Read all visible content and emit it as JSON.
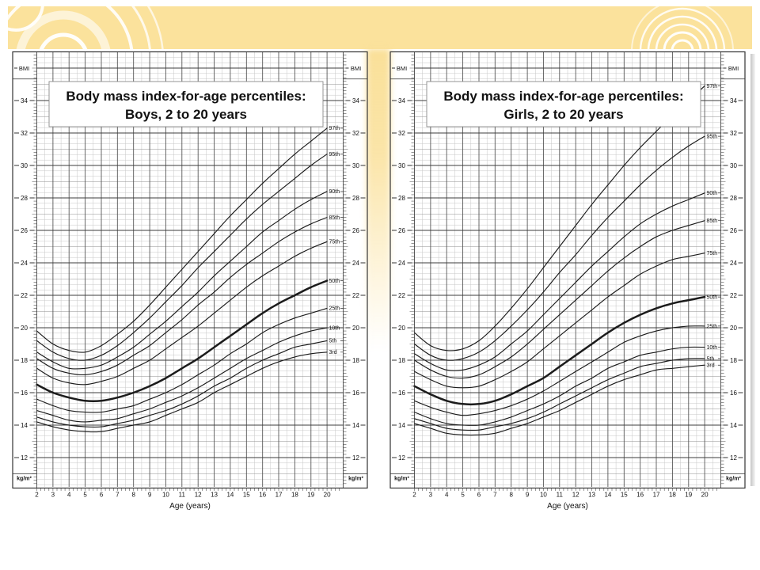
{
  "slide": {
    "background_color": "#ffffff",
    "band_color": "#fbe29c",
    "ornament_color": "#ffffff",
    "curve_color": "#1b1b1b"
  },
  "chart_data": [
    {
      "type": "line",
      "name": "boys-bmi-percentiles",
      "title": "Body mass index-for-age percentiles:",
      "subtitle": "Boys, 2 to 20 years",
      "xlabel": "Age (years)",
      "ylabel_top": "BMI",
      "ylabel_bottom": "kg/m²",
      "grid": true,
      "legend_position": "right-end-of-curve-labels",
      "x": [
        2,
        3,
        4,
        5,
        6,
        7,
        8,
        9,
        10,
        11,
        12,
        13,
        14,
        15,
        16,
        17,
        18,
        19,
        20
      ],
      "xlim": [
        2,
        21
      ],
      "ylim": [
        10.2,
        37
      ],
      "xticks": [
        2,
        3,
        4,
        5,
        6,
        7,
        8,
        9,
        10,
        11,
        12,
        13,
        14,
        15,
        16,
        17,
        18,
        19,
        20
      ],
      "yticks": [
        12,
        14,
        16,
        18,
        20,
        22,
        24,
        26,
        28,
        30,
        32,
        34
      ],
      "series": [
        {
          "name": "97th",
          "bold": false,
          "values": [
            19.8,
            19.0,
            18.6,
            18.5,
            18.9,
            19.6,
            20.4,
            21.4,
            22.5,
            23.6,
            24.7,
            25.8,
            26.9,
            27.9,
            28.9,
            29.8,
            30.7,
            31.5,
            32.3
          ]
        },
        {
          "name": "95th",
          "bold": false,
          "values": [
            19.2,
            18.5,
            18.1,
            18.0,
            18.3,
            18.9,
            19.7,
            20.6,
            21.6,
            22.6,
            23.7,
            24.7,
            25.7,
            26.7,
            27.6,
            28.4,
            29.2,
            30.0,
            30.7
          ]
        },
        {
          "name": "90th",
          "bold": false,
          "values": [
            18.5,
            17.9,
            17.5,
            17.5,
            17.7,
            18.2,
            18.8,
            19.6,
            20.4,
            21.3,
            22.2,
            23.2,
            24.1,
            25.0,
            25.9,
            26.6,
            27.3,
            27.9,
            28.4
          ]
        },
        {
          "name": "85th",
          "bold": false,
          "values": [
            18.1,
            17.5,
            17.2,
            17.1,
            17.3,
            17.7,
            18.3,
            18.9,
            19.7,
            20.5,
            21.4,
            22.2,
            23.1,
            23.9,
            24.6,
            25.3,
            25.9,
            26.4,
            26.8
          ]
        },
        {
          "name": "75th",
          "bold": false,
          "values": [
            17.5,
            16.9,
            16.6,
            16.5,
            16.7,
            17.0,
            17.5,
            18.0,
            18.7,
            19.4,
            20.1,
            20.9,
            21.7,
            22.5,
            23.2,
            23.8,
            24.4,
            24.9,
            25.3
          ]
        },
        {
          "name": "50th",
          "bold": true,
          "values": [
            16.5,
            16.0,
            15.7,
            15.5,
            15.5,
            15.7,
            16.0,
            16.4,
            16.9,
            17.5,
            18.1,
            18.8,
            19.5,
            20.2,
            20.9,
            21.5,
            22.0,
            22.5,
            22.9
          ]
        },
        {
          "name": "25th",
          "bold": false,
          "values": [
            15.6,
            15.2,
            14.9,
            14.8,
            14.8,
            15.0,
            15.2,
            15.6,
            16.0,
            16.5,
            17.1,
            17.7,
            18.4,
            19.0,
            19.7,
            20.2,
            20.6,
            20.9,
            21.2
          ]
        },
        {
          "name": "10th",
          "bold": false,
          "values": [
            14.9,
            14.6,
            14.3,
            14.2,
            14.3,
            14.4,
            14.7,
            15.0,
            15.4,
            15.8,
            16.3,
            16.9,
            17.5,
            18.1,
            18.6,
            19.1,
            19.5,
            19.8,
            20.0
          ]
        },
        {
          "name": "5th",
          "bold": false,
          "values": [
            14.5,
            14.2,
            14.0,
            13.9,
            13.9,
            14.1,
            14.3,
            14.6,
            14.9,
            15.3,
            15.8,
            16.4,
            16.9,
            17.5,
            18.0,
            18.4,
            18.8,
            19.0,
            19.2
          ]
        },
        {
          "name": "3rd",
          "bold": false,
          "values": [
            14.2,
            13.9,
            13.7,
            13.6,
            13.6,
            13.8,
            14.0,
            14.2,
            14.6,
            15.0,
            15.4,
            16.0,
            16.5,
            17.0,
            17.5,
            17.9,
            18.2,
            18.4,
            18.5
          ]
        }
      ]
    },
    {
      "type": "line",
      "name": "girls-bmi-percentiles",
      "title": "Body mass index-for-age percentiles:",
      "subtitle": "Girls, 2 to 20 years",
      "xlabel": "Age (years)",
      "ylabel_top": "BMI",
      "ylabel_bottom": "kg/m²",
      "grid": true,
      "legend_position": "right-end-of-curve-labels",
      "x": [
        2,
        3,
        4,
        5,
        6,
        7,
        8,
        9,
        10,
        11,
        12,
        13,
        14,
        15,
        16,
        17,
        18,
        19,
        20
      ],
      "xlim": [
        2,
        21
      ],
      "ylim": [
        10.2,
        37
      ],
      "xticks": [
        2,
        3,
        4,
        5,
        6,
        7,
        8,
        9,
        10,
        11,
        12,
        13,
        14,
        15,
        16,
        17,
        18,
        19,
        20
      ],
      "yticks": [
        12,
        14,
        16,
        18,
        20,
        22,
        24,
        26,
        28,
        30,
        32,
        34
      ],
      "series": [
        {
          "name": "97th",
          "bold": false,
          "values": [
            19.7,
            18.9,
            18.6,
            18.7,
            19.2,
            20.1,
            21.2,
            22.4,
            23.7,
            25.0,
            26.3,
            27.6,
            28.8,
            30.0,
            31.1,
            32.1,
            33.1,
            34.0,
            34.9
          ]
        },
        {
          "name": "95th",
          "bold": false,
          "values": [
            19.0,
            18.3,
            18.0,
            18.1,
            18.5,
            19.2,
            20.1,
            21.1,
            22.2,
            23.4,
            24.5,
            25.7,
            26.8,
            27.8,
            28.8,
            29.7,
            30.5,
            31.2,
            31.8
          ]
        },
        {
          "name": "90th",
          "bold": false,
          "values": [
            18.4,
            17.8,
            17.4,
            17.4,
            17.7,
            18.2,
            19.0,
            19.8,
            20.8,
            21.8,
            22.8,
            23.8,
            24.7,
            25.6,
            26.4,
            27.0,
            27.5,
            27.9,
            28.3
          ]
        },
        {
          "name": "85th",
          "bold": false,
          "values": [
            18.0,
            17.4,
            17.0,
            16.9,
            17.1,
            17.6,
            18.2,
            19.0,
            19.9,
            20.8,
            21.7,
            22.6,
            23.5,
            24.3,
            25.0,
            25.6,
            26.0,
            26.3,
            26.6
          ]
        },
        {
          "name": "75th",
          "bold": false,
          "values": [
            17.3,
            16.8,
            16.4,
            16.3,
            16.4,
            16.8,
            17.3,
            17.9,
            18.7,
            19.5,
            20.3,
            21.1,
            21.9,
            22.6,
            23.3,
            23.8,
            24.2,
            24.4,
            24.6
          ]
        },
        {
          "name": "50th",
          "bold": true,
          "values": [
            16.4,
            15.9,
            15.5,
            15.3,
            15.3,
            15.5,
            15.9,
            16.4,
            16.9,
            17.6,
            18.3,
            19.0,
            19.7,
            20.3,
            20.8,
            21.2,
            21.5,
            21.7,
            21.9
          ]
        },
        {
          "name": "25th",
          "bold": false,
          "values": [
            15.5,
            15.1,
            14.8,
            14.6,
            14.7,
            14.9,
            15.2,
            15.6,
            16.1,
            16.7,
            17.3,
            17.9,
            18.5,
            19.1,
            19.5,
            19.8,
            20.0,
            20.1,
            20.1
          ]
        },
        {
          "name": "10th",
          "bold": false,
          "values": [
            14.8,
            14.4,
            14.1,
            14.0,
            14.0,
            14.2,
            14.5,
            14.9,
            15.3,
            15.8,
            16.4,
            16.9,
            17.5,
            17.9,
            18.3,
            18.5,
            18.7,
            18.8,
            18.8
          ]
        },
        {
          "name": "5th",
          "bold": false,
          "values": [
            14.4,
            14.1,
            13.8,
            13.7,
            13.7,
            13.9,
            14.1,
            14.4,
            14.8,
            15.3,
            15.8,
            16.3,
            16.8,
            17.2,
            17.6,
            17.8,
            18.0,
            18.1,
            18.1
          ]
        },
        {
          "name": "3rd",
          "bold": false,
          "values": [
            14.1,
            13.8,
            13.5,
            13.4,
            13.4,
            13.5,
            13.8,
            14.1,
            14.5,
            14.9,
            15.4,
            15.9,
            16.4,
            16.8,
            17.1,
            17.4,
            17.5,
            17.6,
            17.7
          ]
        }
      ]
    }
  ]
}
